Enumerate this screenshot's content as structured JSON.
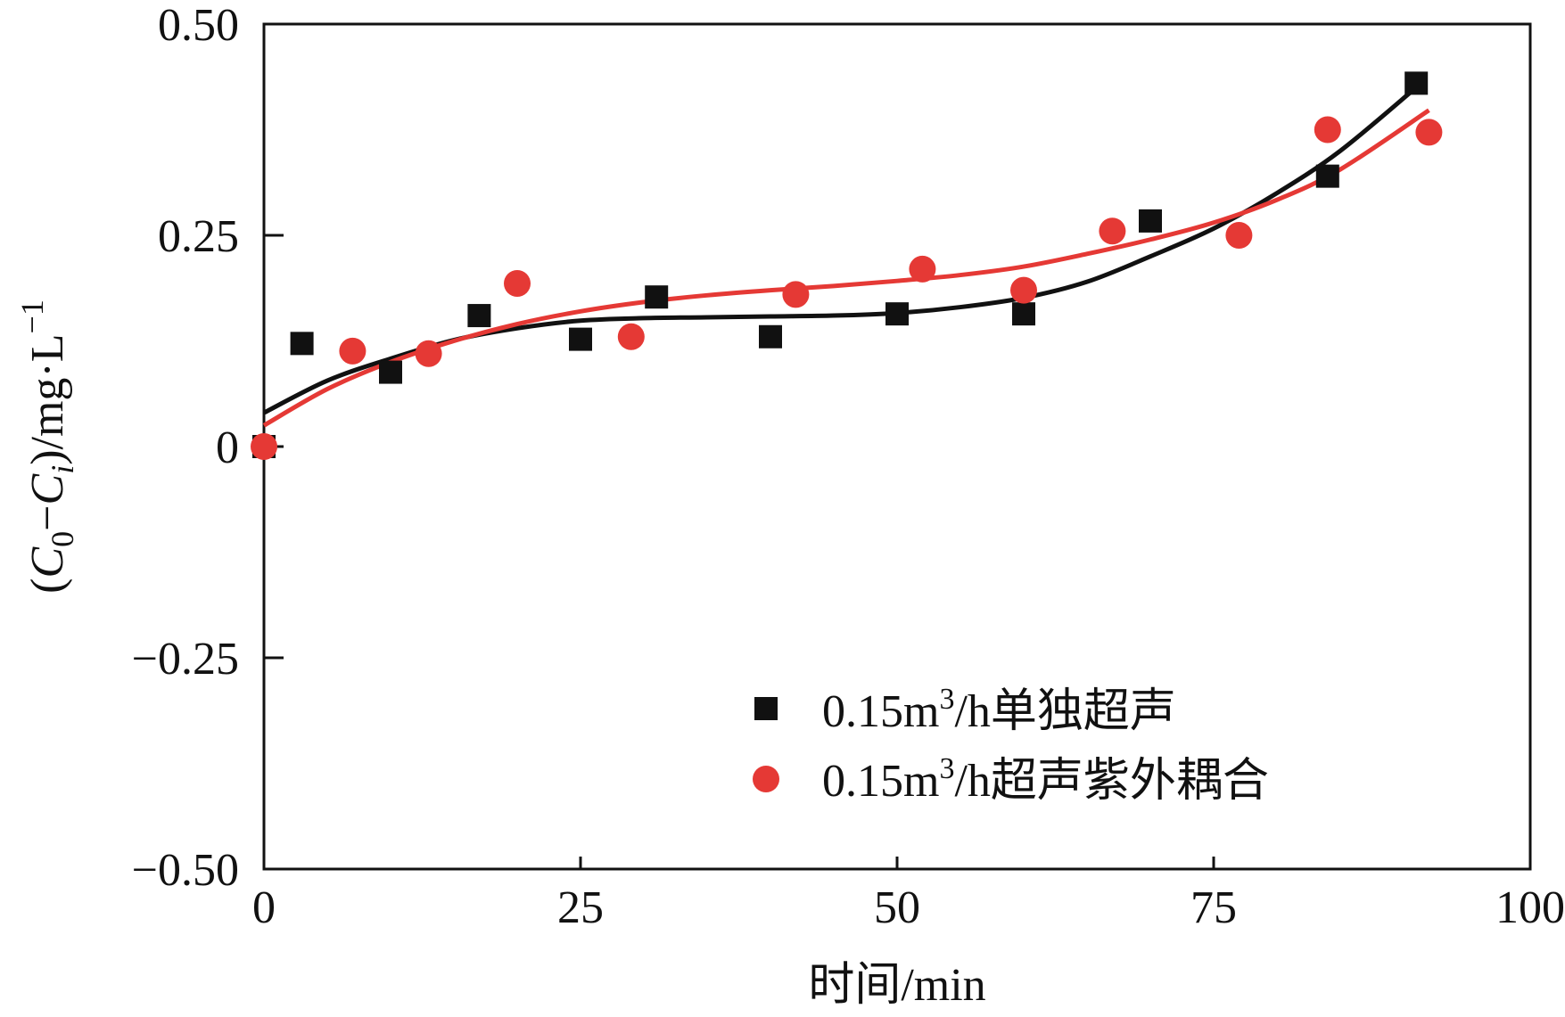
{
  "chart_data": {
    "type": "scatter",
    "title": "",
    "xlabel": "时间/min",
    "ylabel": "(C0−Ci)/mg·L−1",
    "ylabel_parts": {
      "open": "(",
      "c0": "C",
      "sub0": "0",
      "minus": "−",
      "ci": "C",
      "subi": "i",
      "rest": ")/mg·L",
      "sup": "−1"
    },
    "xlim": [
      0,
      100
    ],
    "ylim": [
      -0.5,
      0.5
    ],
    "x_ticks": [
      0,
      25,
      50,
      75,
      100
    ],
    "x_tick_labels": [
      "0",
      "25",
      "50",
      "75",
      "100"
    ],
    "y_ticks": [
      0.5,
      0.25,
      0,
      -0.25,
      -0.5
    ],
    "y_tick_labels": [
      "0.50",
      "0.25",
      "0",
      "−0.25",
      "−0.50"
    ],
    "grid": false,
    "legend_position": "bottom-right",
    "series": [
      {
        "name": "0.15m3/h单独超声",
        "legend": {
          "pre": "0.15m",
          "sup": "3",
          "post": "/h单独超声"
        },
        "marker": "square",
        "color": "#111111",
        "x": [
          0,
          3,
          10,
          17,
          25,
          31,
          40,
          50,
          60,
          70,
          84,
          91
        ],
        "y": [
          0,
          0.122,
          0.088,
          0.155,
          0.127,
          0.177,
          0.13,
          0.157,
          0.157,
          0.267,
          0.32,
          0.43
        ],
        "fit_x": [
          0,
          5,
          10,
          15,
          20,
          25,
          30,
          35,
          40,
          45,
          50,
          55,
          60,
          65,
          70,
          75,
          80,
          85,
          91
        ],
        "fit_y": [
          0.04,
          0.078,
          0.104,
          0.126,
          0.14,
          0.149,
          0.152,
          0.153,
          0.154,
          0.155,
          0.158,
          0.165,
          0.176,
          0.195,
          0.225,
          0.258,
          0.3,
          0.35,
          0.425
        ]
      },
      {
        "name": "0.15m3/h超声紫外耦合",
        "legend": {
          "pre": "0.15m",
          "sup": "3",
          "post": "/h超声紫外耦合"
        },
        "marker": "circle",
        "color": "#e53935",
        "x": [
          0,
          7,
          13,
          20,
          29,
          42,
          52,
          60,
          67,
          77,
          84,
          92
        ],
        "y": [
          0,
          0.113,
          0.11,
          0.193,
          0.13,
          0.18,
          0.21,
          0.185,
          0.255,
          0.25,
          0.375,
          0.372
        ],
        "fit_x": [
          0,
          5,
          10,
          15,
          20,
          25,
          30,
          35,
          40,
          45,
          50,
          55,
          60,
          65,
          70,
          75,
          80,
          85,
          92
        ],
        "fit_y": [
          0.025,
          0.068,
          0.1,
          0.125,
          0.145,
          0.16,
          0.171,
          0.179,
          0.185,
          0.19,
          0.196,
          0.203,
          0.213,
          0.228,
          0.245,
          0.265,
          0.292,
          0.328,
          0.398
        ]
      }
    ]
  }
}
